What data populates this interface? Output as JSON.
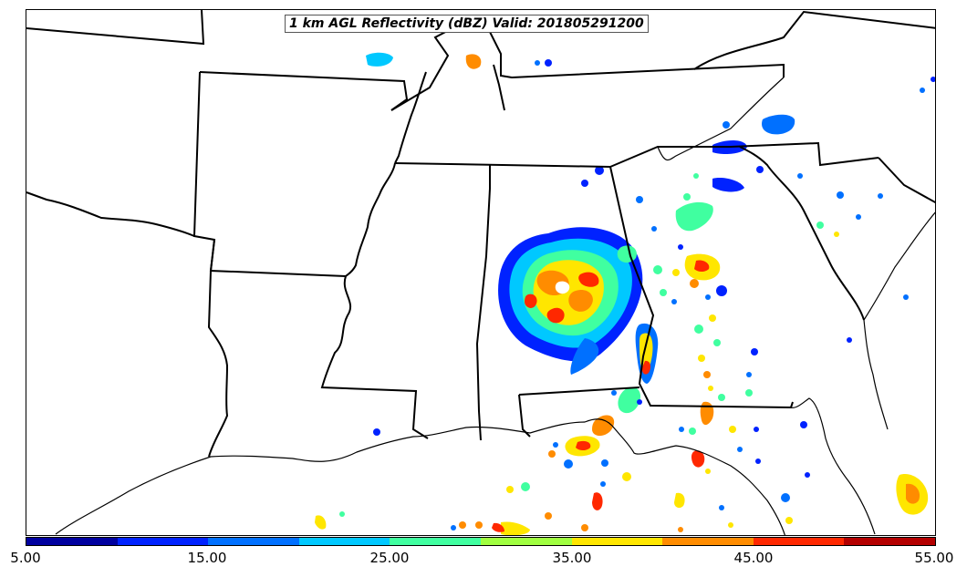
{
  "map": {
    "title": "1 km AGL Reflectivity (dBZ) Valid: 201805291200",
    "variable": "reflectivity",
    "units": "dBZ",
    "valid_time": "201805291200"
  },
  "colorbar": {
    "tick_labels": [
      "5.00",
      "15.00",
      "25.00",
      "35.00",
      "45.00",
      "55.00"
    ],
    "range": [
      5,
      55
    ],
    "colors": [
      "#00009f",
      "#0022ff",
      "#0070ff",
      "#00c8ff",
      "#40ffa0",
      "#a0ff40",
      "#ffe600",
      "#ff8c00",
      "#ff2800",
      "#b40000"
    ]
  }
}
